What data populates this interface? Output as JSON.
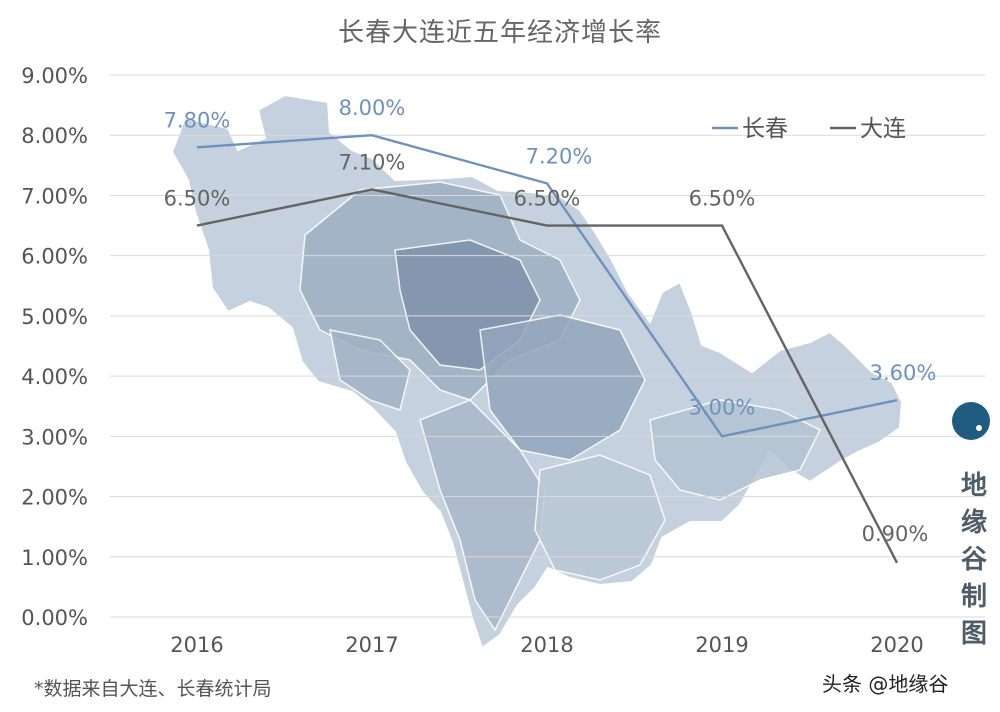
{
  "chart_data": {
    "type": "line",
    "title": "长春大连近五年经济增长率",
    "categories": [
      "2016",
      "2017",
      "2018",
      "2019",
      "2020"
    ],
    "series": [
      {
        "name": "长春",
        "color": "#6f92bd",
        "values": [
          7.8,
          8.0,
          7.2,
          3.0,
          3.6
        ],
        "labels": [
          "7.80%",
          "8.00%",
          "7.20%",
          "3.00%",
          "3.60%"
        ]
      },
      {
        "name": "大连",
        "color": "#646464",
        "values": [
          6.5,
          7.1,
          6.5,
          6.5,
          0.9
        ],
        "labels": [
          "6.50%",
          "7.10%",
          "6.50%",
          "6.50%",
          "0.90%"
        ]
      }
    ],
    "ylim": [
      0,
      9
    ],
    "yticks": [
      "0.00%",
      "1.00%",
      "2.00%",
      "3.00%",
      "4.00%",
      "5.00%",
      "6.00%",
      "7.00%",
      "8.00%",
      "9.00%"
    ],
    "grid": true,
    "legend": "top-right",
    "background_map_color": "#8ea3bd"
  },
  "source_note": "*数据来自大连、长春统计局",
  "watermark_vertical": "地缘谷制图",
  "watermark_bottom": "头条 @地缘谷"
}
